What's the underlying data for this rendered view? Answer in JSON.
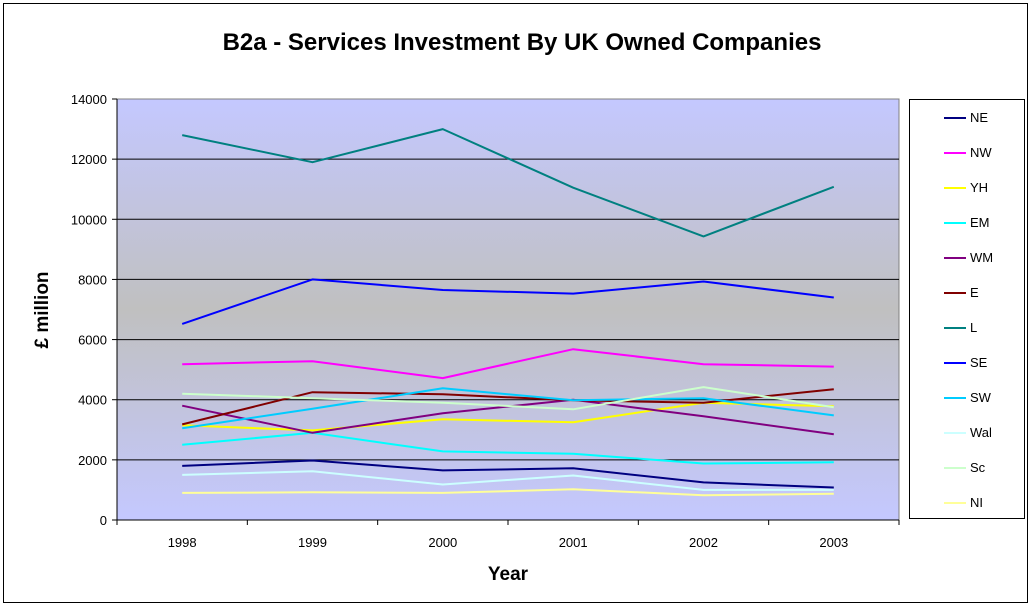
{
  "chart_data": {
    "type": "line",
    "title": "B2a - Services Investment By UK Owned Companies",
    "xlabel": "Year",
    "ylabel": "£ million",
    "categories": [
      "1998",
      "1999",
      "2000",
      "2001",
      "2002",
      "2003"
    ],
    "ylim": [
      0,
      14000
    ],
    "yticks": [
      0,
      2000,
      4000,
      6000,
      8000,
      10000,
      12000,
      14000
    ],
    "grid": true,
    "legend_position": "right",
    "plot_background_top": "#c4c8ff",
    "plot_background_bottom": "#c0c0c0",
    "series": [
      {
        "name": "NE",
        "color": "#000080",
        "values": [
          1800,
          1980,
          1650,
          1720,
          1250,
          1080
        ]
      },
      {
        "name": "NW",
        "color": "#ff00ff",
        "values": [
          5180,
          5280,
          4720,
          5680,
          5180,
          5100
        ]
      },
      {
        "name": "YH",
        "color": "#ffff00",
        "values": [
          3150,
          2980,
          3350,
          3250,
          3900,
          3780
        ]
      },
      {
        "name": "EM",
        "color": "#00ffff",
        "values": [
          2500,
          2900,
          2280,
          2200,
          1880,
          1920
        ]
      },
      {
        "name": "WM",
        "color": "#800080",
        "values": [
          3800,
          2900,
          3550,
          4000,
          3450,
          2850
        ]
      },
      {
        "name": "E",
        "color": "#800000",
        "values": [
          3180,
          4250,
          4180,
          3980,
          3900,
          4350
        ]
      },
      {
        "name": "L",
        "color": "#008080",
        "values": [
          12800,
          11900,
          13000,
          11050,
          9430,
          11080
        ]
      },
      {
        "name": "SE",
        "color": "#0000ff",
        "values": [
          6520,
          8000,
          7650,
          7530,
          7930,
          7400
        ]
      },
      {
        "name": "SW",
        "color": "#00ccff",
        "values": [
          3050,
          3700,
          4380,
          3980,
          4050,
          3480
        ]
      },
      {
        "name": "Wal",
        "color": "#ccffff",
        "values": [
          1500,
          1620,
          1180,
          1480,
          1000,
          1000
        ]
      },
      {
        "name": "Sc",
        "color": "#ccffcc",
        "values": [
          4200,
          4050,
          3900,
          3680,
          4420,
          3750
        ]
      },
      {
        "name": "NI",
        "color": "#ffff99",
        "values": [
          900,
          920,
          900,
          1020,
          820,
          870
        ]
      }
    ]
  }
}
